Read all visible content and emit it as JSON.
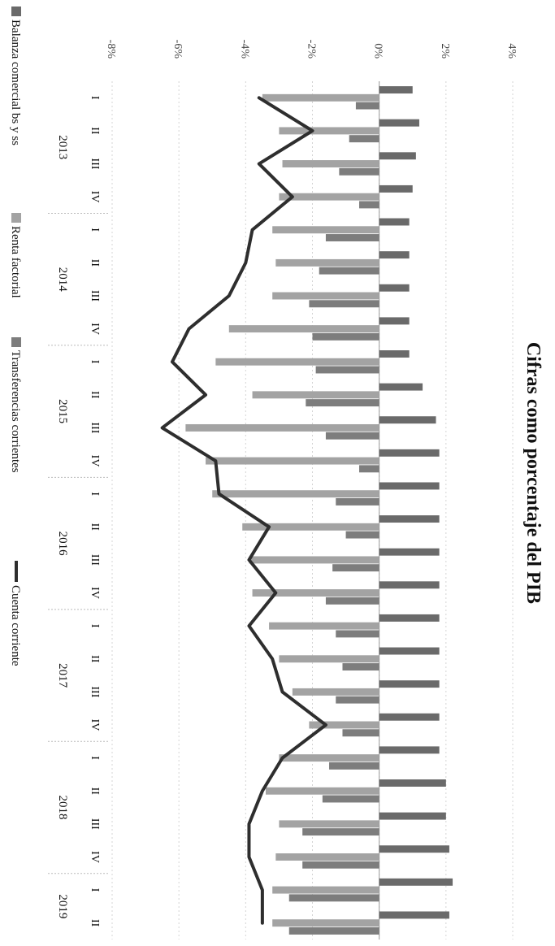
{
  "chart_data": {
    "type": "bar",
    "title": "Cifras como porcentaje del PIB",
    "xlabel": "",
    "ylabel": "",
    "ylim": [
      -8,
      4
    ],
    "yticks": [
      "-8%",
      "-6%",
      "-4%",
      "-2%",
      "0%",
      "2%",
      "4%"
    ],
    "quarter_labels": [
      "I",
      "II",
      "III",
      "IV"
    ],
    "years": [
      "2013",
      "2014",
      "2015",
      "2016",
      "2017",
      "2018",
      "2019"
    ],
    "periods": [
      "2013 I",
      "2013 II",
      "2013 III",
      "2013 IV",
      "2014 I",
      "2014 II",
      "2014 III",
      "2014 IV",
      "2015 I",
      "2015 II",
      "2015 III",
      "2015 IV",
      "2016 I",
      "2016 II",
      "2016 III",
      "2016 IV",
      "2017 I",
      "2017 II",
      "2017 III",
      "2017 IV",
      "2018 I",
      "2018 II",
      "2018 III",
      "2018 IV",
      "2019 I",
      "2019 II"
    ],
    "series": [
      {
        "name": "Balanza comercial bs y ss",
        "kind": "bar",
        "color": "#6a6a6a",
        "values": [
          1.0,
          1.2,
          1.1,
          1.0,
          0.9,
          0.9,
          0.9,
          0.9,
          0.9,
          1.3,
          1.7,
          1.8,
          1.8,
          1.8,
          1.8,
          1.8,
          1.8,
          1.8,
          1.8,
          1.8,
          1.8,
          2.0,
          2.0,
          2.1,
          2.2,
          2.1
        ]
      },
      {
        "name": "Renta factorial",
        "kind": "bar",
        "color": "#a3a3a3",
        "values": [
          -3.5,
          -3.0,
          -2.9,
          -3.0,
          -3.2,
          -3.1,
          -3.2,
          -4.5,
          -4.9,
          -3.8,
          -5.8,
          -5.2,
          -5.0,
          -4.1,
          -3.9,
          -3.8,
          -3.3,
          -3.0,
          -2.6,
          -2.1,
          -3.0,
          -3.4,
          -3.0,
          -3.1,
          -3.2,
          -3.2
        ]
      },
      {
        "name": "Transferencias corrientes",
        "kind": "bar",
        "color": "#7d7d7d",
        "values": [
          -0.7,
          -0.9,
          -1.2,
          -0.6,
          -1.6,
          -1.8,
          -2.1,
          -2.0,
          -1.9,
          -2.2,
          -1.6,
          -0.6,
          -1.3,
          -1.0,
          -1.4,
          -1.6,
          -1.3,
          -1.1,
          -1.3,
          -1.1,
          -1.5,
          -1.7,
          -2.3,
          -2.3,
          -2.7,
          -2.7
        ]
      },
      {
        "name": "Cuenta corriente",
        "kind": "line",
        "color": "#2e2e2e",
        "values": [
          -3.6,
          -2.0,
          -3.6,
          -2.6,
          -3.8,
          -4.0,
          -4.5,
          -5.7,
          -6.2,
          -5.2,
          -6.5,
          -4.9,
          -4.8,
          -3.3,
          -3.9,
          -3.1,
          -3.9,
          -3.2,
          -2.9,
          -1.6,
          -2.9,
          -3.5,
          -3.9,
          -3.9,
          -3.5,
          -3.5
        ]
      }
    ],
    "legend": "bottom"
  }
}
